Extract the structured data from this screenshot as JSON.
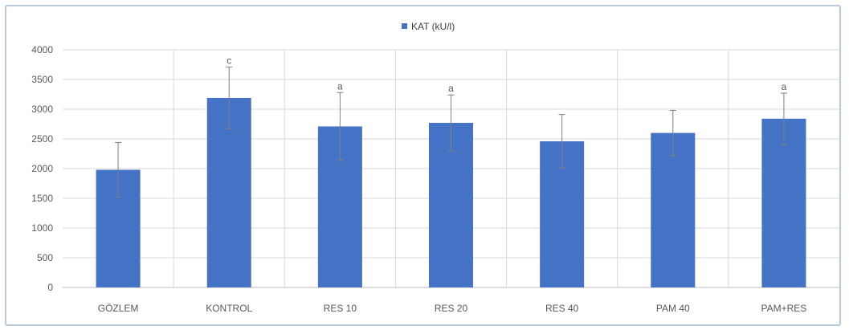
{
  "chart_data": {
    "type": "bar",
    "categories": [
      "GÖZLEM",
      "KONTROL",
      "RES 10",
      "RES 20",
      "RES 40",
      "PAM 40",
      "PAM+RES"
    ],
    "series": [
      {
        "name": "KAT (kU/l)",
        "values": [
          1980,
          3190,
          2710,
          2770,
          2460,
          2600,
          2840
        ],
        "error": [
          460,
          520,
          570,
          470,
          450,
          380,
          430
        ],
        "labels": [
          "",
          "c",
          "a",
          "a",
          "",
          "",
          "a"
        ]
      }
    ],
    "ylim": [
      0,
      4000
    ],
    "yticks": [
      0,
      500,
      1000,
      1500,
      2000,
      2500,
      3000,
      3500,
      4000
    ],
    "grid": true,
    "legend_position": "top-center",
    "colors": {
      "bar": "#4472c4",
      "grid": "#d9d9d9",
      "axis": "#bfbfbf",
      "error": "#7f7f7f"
    }
  }
}
